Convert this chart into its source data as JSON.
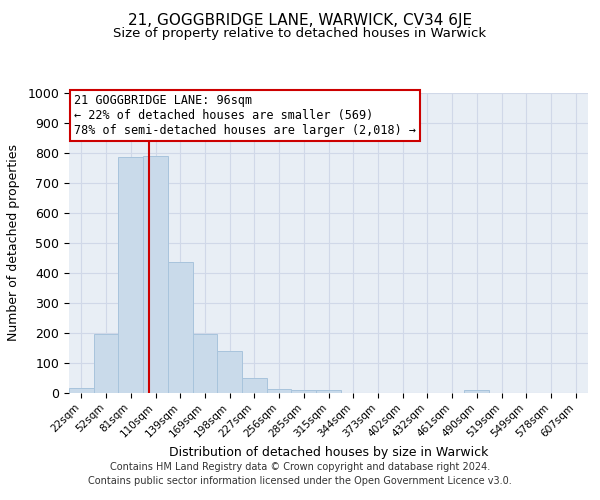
{
  "title_line1": "21, GOGGBRIDGE LANE, WARWICK, CV34 6JE",
  "title_line2": "Size of property relative to detached houses in Warwick",
  "xlabel": "Distribution of detached houses by size in Warwick",
  "ylabel": "Number of detached properties",
  "bar_labels": [
    "22sqm",
    "52sqm",
    "81sqm",
    "110sqm",
    "139sqm",
    "169sqm",
    "198sqm",
    "227sqm",
    "256sqm",
    "285sqm",
    "315sqm",
    "344sqm",
    "373sqm",
    "402sqm",
    "432sqm",
    "461sqm",
    "490sqm",
    "519sqm",
    "549sqm",
    "578sqm",
    "607sqm"
  ],
  "bar_heights": [
    15,
    195,
    785,
    790,
    435,
    195,
    140,
    50,
    12,
    10,
    10,
    0,
    0,
    0,
    0,
    0,
    8,
    0,
    0,
    0,
    0
  ],
  "bar_color": "#c9daea",
  "bar_edge_color": "#a8c4dc",
  "grid_color": "#d0d8e8",
  "bg_color": "#e8eef5",
  "vline_x": 2.73,
  "vline_color": "#cc0000",
  "annotation_text": "21 GOGGBRIDGE LANE: 96sqm\n← 22% of detached houses are smaller (569)\n78% of semi-detached houses are larger (2,018) →",
  "annotation_box_color": "#ffffff",
  "annotation_box_edge": "#cc0000",
  "ylim": [
    0,
    1000
  ],
  "yticks": [
    0,
    100,
    200,
    300,
    400,
    500,
    600,
    700,
    800,
    900,
    1000
  ],
  "footer_line1": "Contains HM Land Registry data © Crown copyright and database right 2024.",
  "footer_line2": "Contains public sector information licensed under the Open Government Licence v3.0."
}
